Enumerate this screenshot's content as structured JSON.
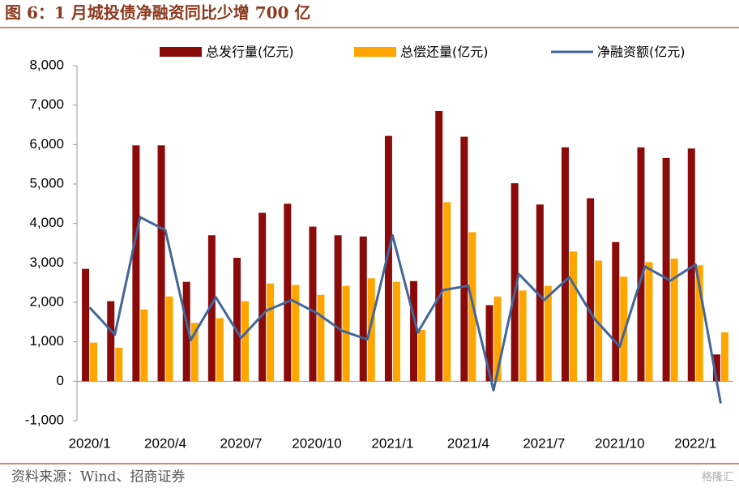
{
  "chart_data": {
    "type": "bar",
    "title": "图 6：1 月城投债净融资同比少增 700 亿",
    "source": "资料来源：Wind、招商证券",
    "watermark": "格隆汇",
    "categories": [
      "2020/1",
      null,
      null,
      "2020/4",
      null,
      null,
      "2020/7",
      null,
      null,
      "2020/10",
      null,
      null,
      "2021/1",
      null,
      null,
      "2021/4",
      null,
      null,
      "2021/7",
      null,
      null,
      "2021/10",
      null,
      null,
      "2022/1",
      null
    ],
    "series": [
      {
        "name": "总发行量(亿元)",
        "type": "bar",
        "color": "#8b0a0a",
        "values": [
          2850,
          2030,
          5980,
          5980,
          2520,
          3700,
          3130,
          4270,
          4500,
          3920,
          3700,
          3670,
          6220,
          2540,
          6850,
          6200,
          1930,
          5020,
          4480,
          5930,
          4640,
          3530,
          5930,
          5660,
          5900,
          680
        ]
      },
      {
        "name": "总偿还量(亿元)",
        "type": "bar",
        "color": "#ffa500",
        "values": [
          980,
          850,
          1820,
          2150,
          1480,
          1600,
          2030,
          2480,
          2440,
          2190,
          2420,
          2610,
          2520,
          1300,
          4540,
          3780,
          2150,
          2300,
          2420,
          3290,
          3060,
          2650,
          3020,
          3110,
          2940,
          1240
        ]
      },
      {
        "name": "净融资额(亿元)",
        "type": "line",
        "color": "#41669a",
        "values": [
          1870,
          1180,
          4160,
          3830,
          1040,
          2130,
          1100,
          1790,
          2060,
          1730,
          1280,
          1060,
          3700,
          1240,
          2310,
          2420,
          -230,
          2720,
          2060,
          2640,
          1580,
          880,
          2910,
          2550,
          2960,
          -560
        ]
      }
    ],
    "ylim": [
      -1000,
      8000
    ],
    "yticks": [
      {
        "value": -1000,
        "label": "-1,000"
      },
      0,
      {
        "value": 1000,
        "label": "1,000"
      },
      {
        "value": 2000,
        "label": "2,000"
      },
      {
        "value": 3000,
        "label": "3,000"
      },
      {
        "value": 4000,
        "label": "4,000"
      },
      {
        "value": 5000,
        "label": "5,000"
      },
      {
        "value": 6000,
        "label": "6,000"
      },
      {
        "value": 7000,
        "label": "7,000"
      },
      {
        "value": 8000,
        "label": "8,000"
      }
    ],
    "grid": false,
    "legend": "top"
  }
}
